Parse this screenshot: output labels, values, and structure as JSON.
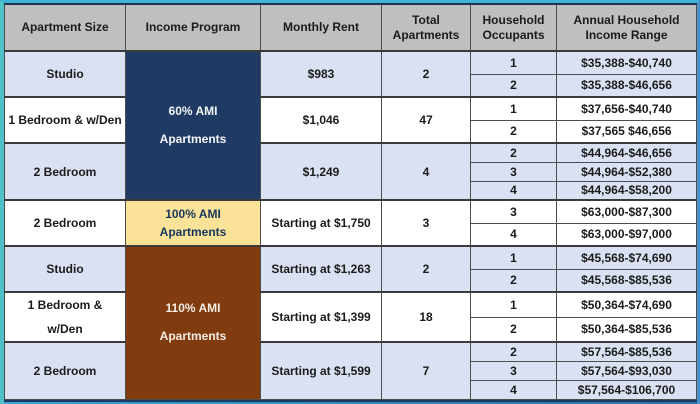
{
  "chart_data": {
    "type": "table",
    "columns": [
      "Apartment Size",
      "Income Program",
      "Monthly Rent",
      "Total Apartments",
      "Household Occupants",
      "Annual Household Income Range"
    ],
    "rows": [
      [
        "Studio",
        "60% AMI Apartments",
        "$983",
        "2",
        "1",
        "$35,388-$40,740"
      ],
      [
        "Studio",
        "60% AMI Apartments",
        "$983",
        "2",
        "2",
        "$35,388-$46,656"
      ],
      [
        "1 Bedroom & w/Den",
        "60% AMI Apartments",
        "$1,046",
        "47",
        "1",
        "$37,656-$40,740"
      ],
      [
        "1 Bedroom & w/Den",
        "60% AMI Apartments",
        "$1,046",
        "47",
        "2",
        "$37,565 $46,656"
      ],
      [
        "2 Bedroom",
        "60% AMI Apartments",
        "$1,249",
        "4",
        "2",
        "$44,964-$46,656"
      ],
      [
        "2 Bedroom",
        "60% AMI Apartments",
        "$1,249",
        "4",
        "3",
        "$44,964-$52,380"
      ],
      [
        "2 Bedroom",
        "60% AMI Apartments",
        "$1,249",
        "4",
        "4",
        "$44,964-$58,200"
      ],
      [
        "2 Bedroom",
        "100% AMI Apartments",
        "Starting at $1,750",
        "3",
        "3",
        "$63,000-$87,300"
      ],
      [
        "2 Bedroom",
        "100% AMI Apartments",
        "Starting at $1,750",
        "3",
        "4",
        "$63,000-$97,000"
      ],
      [
        "Studio",
        "110% AMI Apartments",
        "Starting at $1,263",
        "2",
        "1",
        "$45,568-$74,690"
      ],
      [
        "Studio",
        "110% AMI Apartments",
        "Starting at $1,263",
        "2",
        "2",
        "$45,568-$85,536"
      ],
      [
        "1 Bedroom & w/Den",
        "110% AMI Apartments",
        "Starting at $1,399",
        "18",
        "1",
        "$50,364-$74,690"
      ],
      [
        "1 Bedroom & w/Den",
        "110% AMI Apartments",
        "Starting at $1,399",
        "18",
        "2",
        "$50,364-$85,536"
      ],
      [
        "2 Bedroom",
        "110% AMI Apartments",
        "Starting at $1,599",
        "7",
        "2",
        "$57,564-$85,536"
      ],
      [
        "2 Bedroom",
        "110% AMI Apartments",
        "Starting at $1,599",
        "7",
        "3",
        "$57,564-$93,030"
      ],
      [
        "2 Bedroom",
        "110% AMI Apartments",
        "Starting at $1,599",
        "7",
        "4",
        "$57,564-$106,700"
      ]
    ]
  },
  "table": {
    "headers": [
      "Apartment Size",
      "Income Program",
      "Monthly Rent",
      "Total Apartments",
      "Household Occupants",
      "Annual Household Income Range"
    ],
    "programs": [
      {
        "label": "60% AMI Apartments",
        "label_lines": [
          "60% AMI",
          "Apartments"
        ],
        "bg": "#1f3a63",
        "text": "#f2f4f8",
        "groups": [
          {
            "apartment": [
              "Studio"
            ],
            "rent": "$983",
            "total": "2",
            "shade": "blue",
            "rows": [
              {
                "occupants": "1",
                "income": "$35,388-$40,740"
              },
              {
                "occupants": "2",
                "income": "$35,388-$46,656"
              }
            ]
          },
          {
            "apartment": [
              "1 Bedroom & w/Den"
            ],
            "rent": "$1,046",
            "total": "47",
            "shade": "white",
            "rows": [
              {
                "occupants": "1",
                "income": "$37,656-$40,740"
              },
              {
                "occupants": "2",
                "income": "$37,565 $46,656"
              }
            ]
          },
          {
            "apartment": [
              "2 Bedroom"
            ],
            "rent": "$1,249",
            "total": "4",
            "shade": "blue",
            "rows": [
              {
                "occupants": "2",
                "income": "$44,964-$46,656"
              },
              {
                "occupants": "3",
                "income": "$44,964-$52,380"
              },
              {
                "occupants": "4",
                "income": "$44,964-$58,200"
              }
            ]
          }
        ]
      },
      {
        "label": "100% AMI Apartments",
        "label_lines": [
          "100% AMI",
          "Apartments"
        ],
        "bg": "#fae398",
        "text": "#17365d",
        "groups": [
          {
            "apartment": [
              "2 Bedroom"
            ],
            "rent": "Starting at $1,750",
            "total": "3",
            "shade": "white",
            "rows": [
              {
                "occupants": "3",
                "income": "$63,000-$87,300"
              },
              {
                "occupants": "4",
                "income": "$63,000-$97,000"
              }
            ]
          }
        ]
      },
      {
        "label": "110% AMI Apartments",
        "label_lines": [
          "110% AMI",
          "Apartments"
        ],
        "bg": "#803b0e",
        "text": "#f5ede5",
        "groups": [
          {
            "apartment": [
              "Studio"
            ],
            "rent": "Starting at $1,263",
            "total": "2",
            "shade": "blue",
            "rows": [
              {
                "occupants": "1",
                "income": "$45,568-$74,690"
              },
              {
                "occupants": "2",
                "income": "$45,568-$85,536"
              }
            ]
          },
          {
            "apartment": [
              "1 Bedroom &",
              "w/Den"
            ],
            "rent": "Starting at $1,399",
            "total": "18",
            "shade": "white",
            "rows": [
              {
                "occupants": "1",
                "income": "$50,364-$74,690"
              },
              {
                "occupants": "2",
                "income": "$50,364-$85,536"
              }
            ]
          },
          {
            "apartment": [
              "2 Bedroom"
            ],
            "rent": "Starting at $1,599",
            "total": "7",
            "shade": "blue",
            "rows": [
              {
                "occupants": "2",
                "income": "$57,564-$85,536"
              },
              {
                "occupants": "3",
                "income": "$57,564-$93,030"
              },
              {
                "occupants": "4",
                "income": "$57,564-$106,700"
              }
            ]
          }
        ]
      }
    ]
  },
  "colors": {
    "header_bg": "#bfbfbf",
    "row_blue": "#d9e1f2",
    "row_white": "#ffffff",
    "program_navy": "#1f3a63",
    "program_yellow": "#fae398",
    "program_brown": "#803b0e",
    "frame_teal": "#4fc1c9",
    "frame_top_cyan": "#3eb3d8",
    "frame_right_blue": "#4a90ca",
    "bottom_bar_blue": "#2a6fb0",
    "grid_dark": "#3a3a3a",
    "grid_light": "#99a4b6",
    "text_dark": "#1b1b1b"
  }
}
